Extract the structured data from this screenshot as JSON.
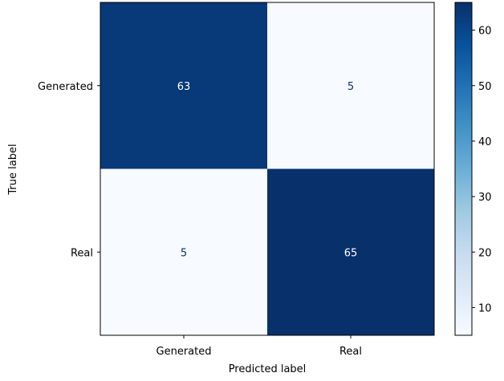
{
  "chart_data": {
    "type": "heatmap",
    "xlabel": "Predicted label",
    "ylabel": "True label",
    "x_categories": [
      "Generated",
      "Real"
    ],
    "y_categories": [
      "Generated",
      "Real"
    ],
    "matrix": [
      [
        63,
        5
      ],
      [
        5,
        65
      ]
    ],
    "colormap": "Blues",
    "colorbar": {
      "min": 5,
      "max": 65,
      "ticks": [
        10,
        20,
        30,
        40,
        50,
        60
      ]
    },
    "text_colors": {
      "dark_cell": "#ffffff",
      "light_cell": "#08306b"
    }
  }
}
